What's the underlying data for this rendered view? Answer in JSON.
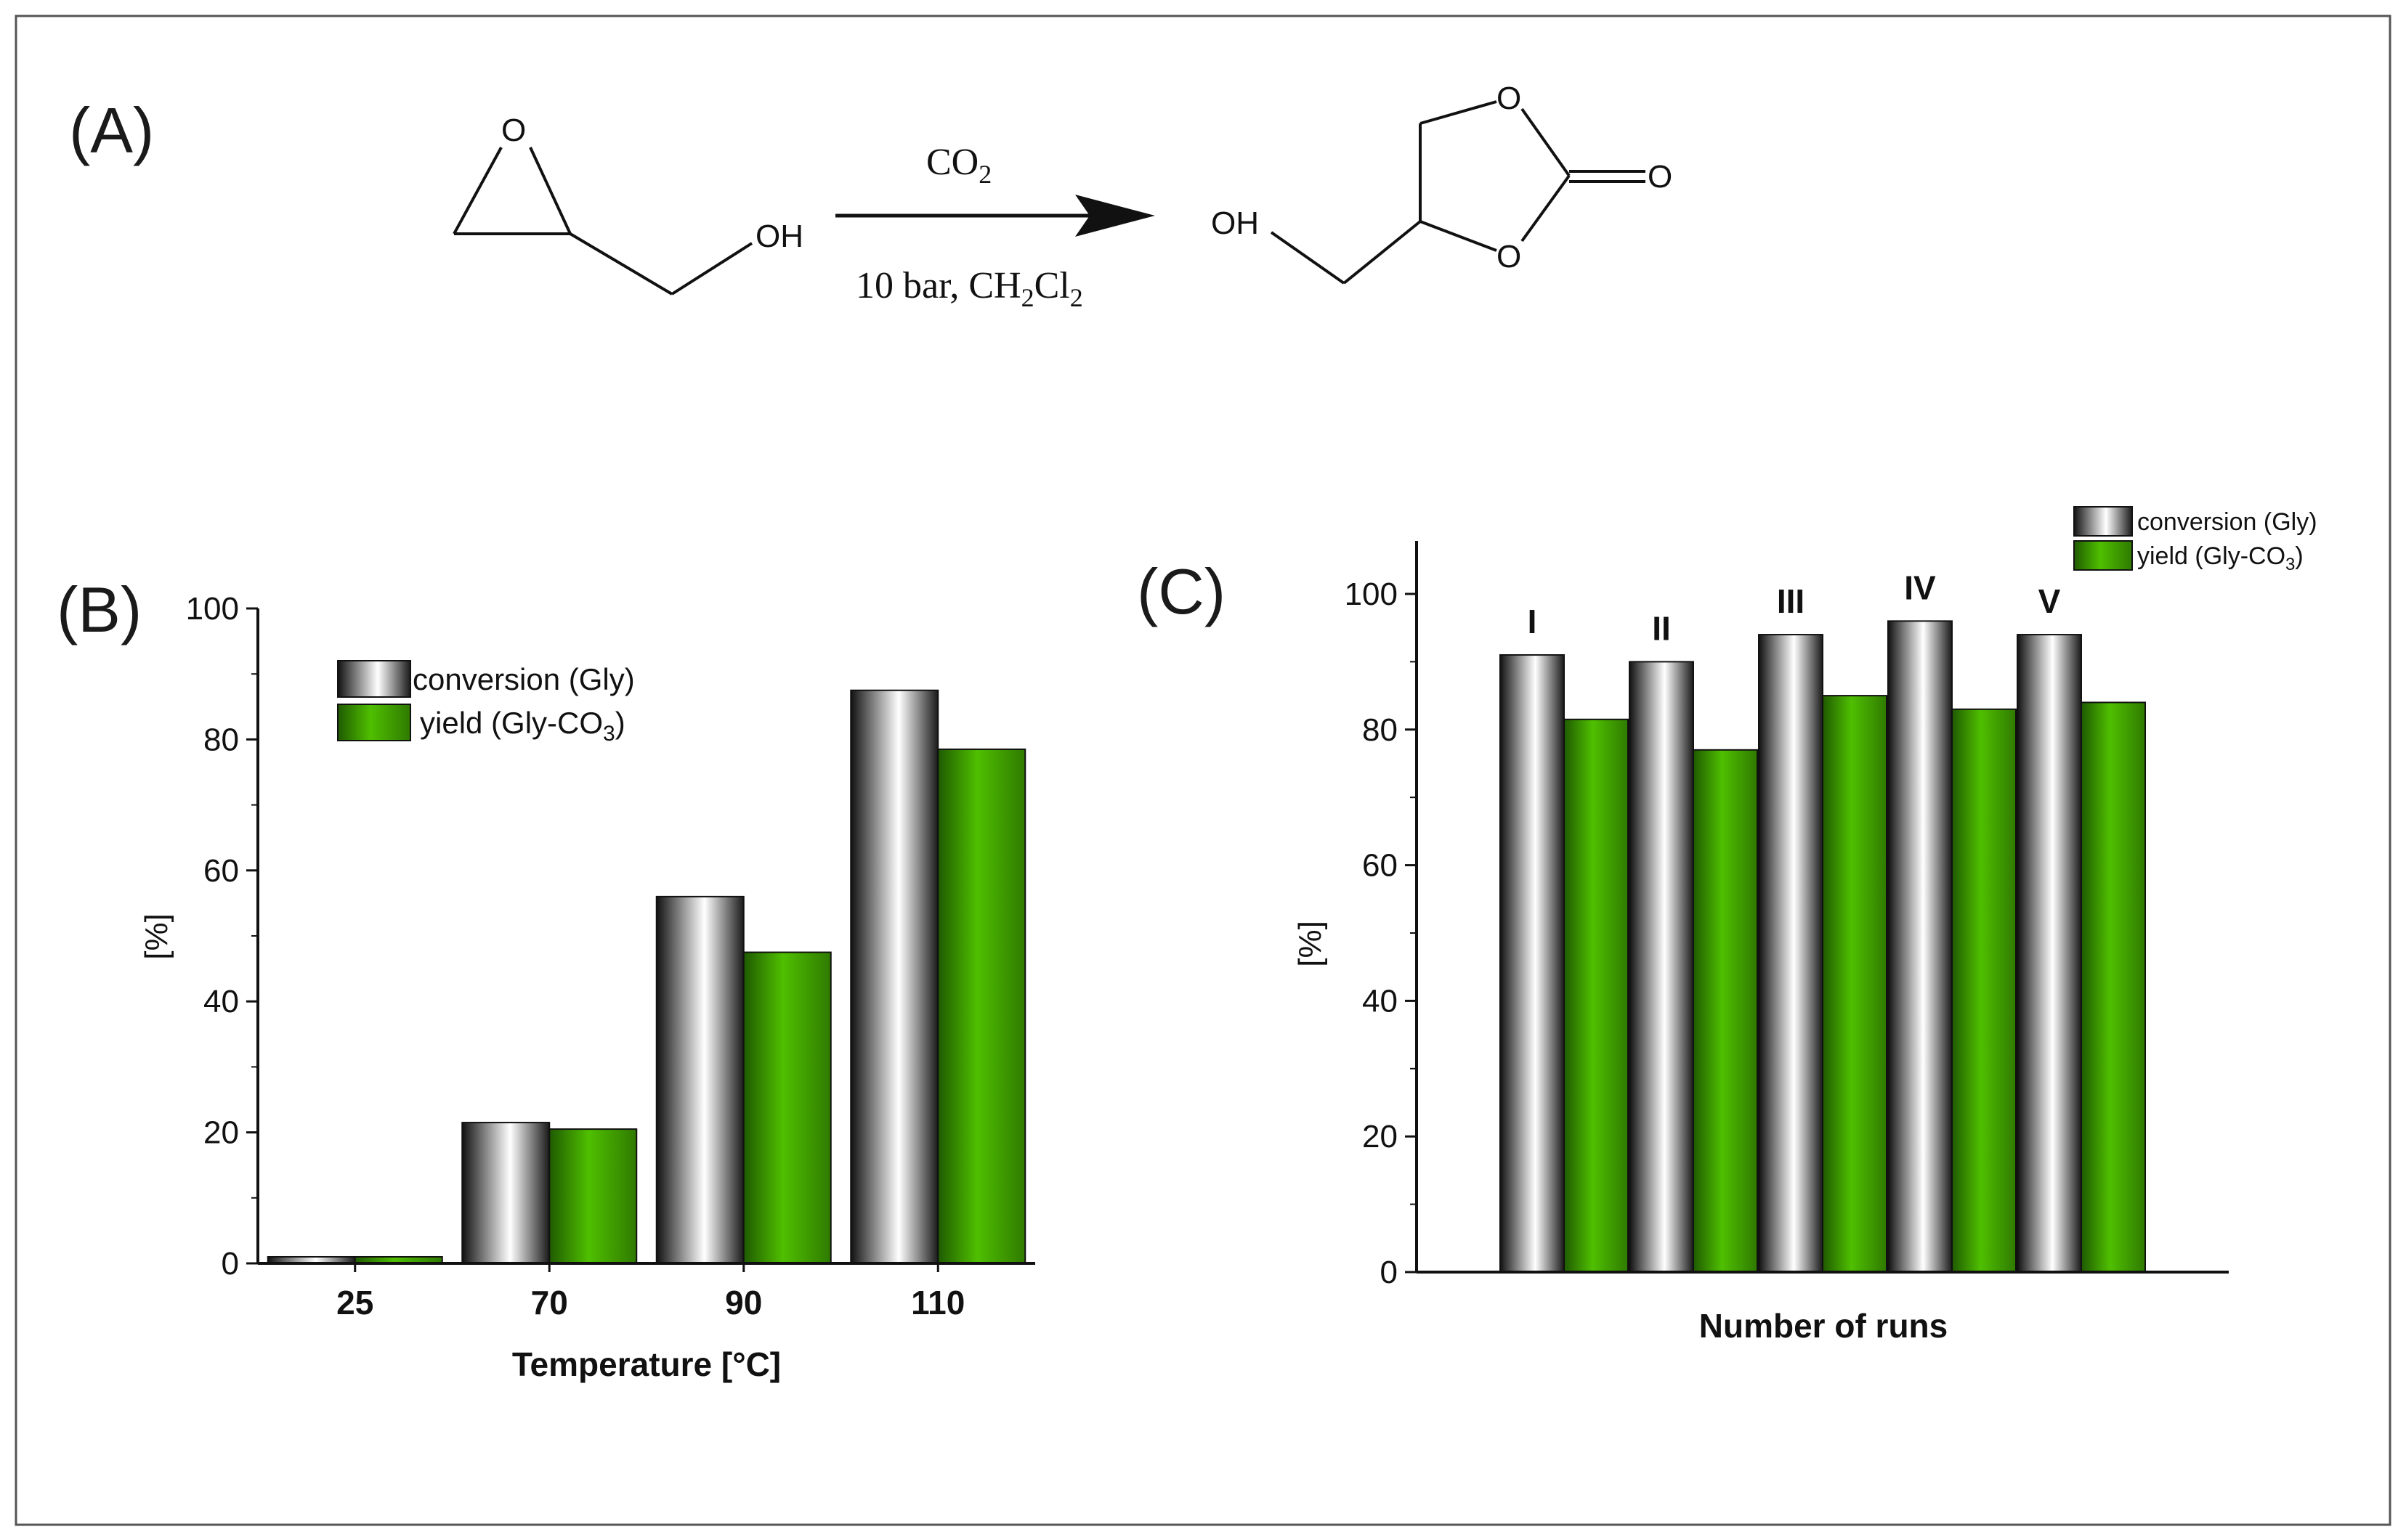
{
  "panels": {
    "a": "(A)",
    "b": "(B)",
    "c": "(C)"
  },
  "reaction": {
    "reagent": "CO",
    "reagent_sub": "2",
    "conditions_main": "10 bar, CH",
    "conditions_sub1": "2",
    "conditions_mid": "Cl",
    "conditions_sub2": "2",
    "reactant_o": "O",
    "reactant_oh": "OH",
    "product_o1": "O",
    "product_o2": "O",
    "product_o3": "O",
    "product_oh": "OH"
  },
  "colors": {
    "conversion": "#ffffff",
    "yield": "#4db800"
  },
  "chart_data": [
    {
      "type": "bar",
      "panel": "(B)",
      "categories": [
        "25",
        "70",
        "90",
        "110"
      ],
      "series": [
        {
          "name": "conversion (Gly)",
          "values": [
            1,
            21.5,
            56,
            87.5
          ]
        },
        {
          "name": "yield (Gly-CO3)",
          "values": [
            1,
            20.5,
            47.5,
            78.5
          ]
        }
      ],
      "legend_conversion": "conversion (Gly)",
      "legend_yield_main": "yield (Gly-CO",
      "legend_yield_sub": "3",
      "legend_yield_end": ")",
      "xlabel": "Temperature [°C]",
      "ylabel": "[%]",
      "ylim": [
        0,
        100
      ],
      "yticks": [
        "0",
        "20",
        "40",
        "60",
        "80",
        "100"
      ],
      "legend_position": "top-left",
      "grid": false
    },
    {
      "type": "bar",
      "panel": "(C)",
      "categories": [
        "I",
        "II",
        "III",
        "IV",
        "V"
      ],
      "series": [
        {
          "name": "conversion (Gly)",
          "values": [
            91,
            90,
            94,
            96,
            94
          ]
        },
        {
          "name": "yield (Gly-CO3)",
          "values": [
            81.5,
            77,
            85,
            83,
            84
          ]
        }
      ],
      "legend_conversion": "conversion (Gly)",
      "legend_yield_main": "yield (Gly-CO",
      "legend_yield_sub": "3",
      "legend_yield_end": ")",
      "xlabel": "Number of runs",
      "ylabel": "[%]",
      "ylim": [
        0,
        100
      ],
      "yticks": [
        "0",
        "20",
        "40",
        "60",
        "80",
        "100"
      ],
      "legend_position": "top-right",
      "grid": false
    }
  ]
}
